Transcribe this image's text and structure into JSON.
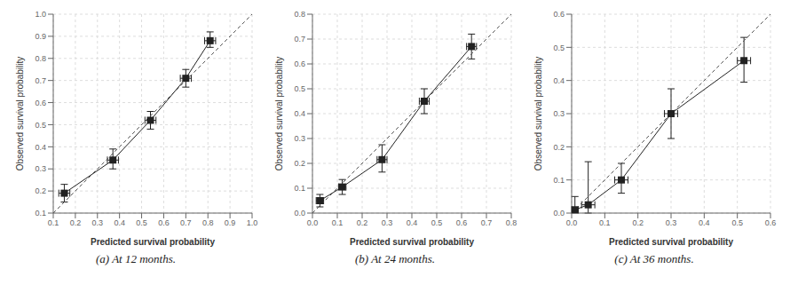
{
  "chart_data": [
    {
      "type": "line",
      "title": "(a) At 12 months.",
      "xlabel": "Predicted survival probability",
      "ylabel": "Observed survival probability",
      "xlim": [
        0.1,
        1.0
      ],
      "ylim": [
        0.1,
        1.0
      ],
      "xticks": [
        0.1,
        0.2,
        0.3,
        0.4,
        0.5,
        0.6,
        0.7,
        0.8,
        0.9,
        {
          "value": 1.0,
          "label": "1.0"
        }
      ],
      "yticks": [
        0.1,
        0.2,
        0.3,
        0.4,
        0.5,
        0.6,
        0.7,
        0.8,
        0.9,
        {
          "value": 1.0,
          "label": "1.0"
        }
      ],
      "grid": true,
      "series": [
        {
          "type": "line",
          "line_style": "dashed",
          "color": "#555555",
          "x": [
            0.1,
            1.0
          ],
          "values": [
            0.1,
            1.0
          ]
        },
        {
          "type": "line",
          "line_style": "solid",
          "marker": "square",
          "color": "#222222",
          "x": [
            0.15,
            0.37,
            0.54,
            0.7,
            0.81
          ],
          "values": [
            0.19,
            0.34,
            0.52,
            0.71,
            0.88
          ],
          "yerr_low": [
            0.04,
            0.04,
            0.04,
            0.04,
            0.03
          ],
          "yerr_high": [
            0.04,
            0.05,
            0.04,
            0.04,
            0.04
          ],
          "xerr_low": [
            0.025,
            0.025,
            0.025,
            0.025,
            0.025
          ],
          "xerr_high": [
            0.025,
            0.025,
            0.025,
            0.025,
            0.025
          ]
        }
      ]
    },
    {
      "type": "line",
      "title": "(b) At 24 months.",
      "xlabel": "Predicted survival probability",
      "ylabel": "Observed survival probability",
      "xlim": [
        0.0,
        0.8
      ],
      "ylim": [
        0.0,
        0.8
      ],
      "xticks": [
        {
          "value": 0.0,
          "label": "0.0"
        },
        0.1,
        0.2,
        0.3,
        0.4,
        0.5,
        0.6,
        0.7,
        0.8
      ],
      "yticks": [
        {
          "value": 0.0,
          "label": "0.0"
        },
        0.1,
        0.2,
        0.3,
        0.4,
        0.5,
        0.6,
        0.7,
        0.8
      ],
      "grid": true,
      "series": [
        {
          "type": "line",
          "line_style": "dashed",
          "color": "#555555",
          "x": [
            0.0,
            0.8
          ],
          "values": [
            0.0,
            0.8
          ]
        },
        {
          "type": "line",
          "line_style": "solid",
          "marker": "square",
          "color": "#222222",
          "x": [
            0.03,
            0.12,
            0.28,
            0.45,
            0.64
          ],
          "values": [
            0.05,
            0.105,
            0.215,
            0.45,
            0.67
          ],
          "yerr_low": [
            0.025,
            0.03,
            0.05,
            0.05,
            0.05
          ],
          "yerr_high": [
            0.025,
            0.03,
            0.06,
            0.05,
            0.05
          ],
          "xerr_low": [
            0.015,
            0.015,
            0.02,
            0.02,
            0.02
          ],
          "xerr_high": [
            0.015,
            0.015,
            0.02,
            0.02,
            0.02
          ]
        }
      ]
    },
    {
      "type": "line",
      "title": "(c) At 36 months.",
      "xlabel": "Predicted survival probability",
      "ylabel": "Observed survival probability",
      "xlim": [
        0.0,
        0.6
      ],
      "ylim": [
        0.0,
        0.6
      ],
      "xticks": [
        {
          "value": 0.0,
          "label": "0.0"
        },
        0.1,
        0.2,
        0.3,
        0.4,
        0.5,
        0.6
      ],
      "yticks": [
        {
          "value": 0.0,
          "label": "0.0"
        },
        0.1,
        0.2,
        0.3,
        0.4,
        0.5,
        0.6
      ],
      "grid": true,
      "series": [
        {
          "type": "line",
          "line_style": "dashed",
          "color": "#555555",
          "x": [
            0.0,
            0.6
          ],
          "values": [
            0.0,
            0.6
          ]
        },
        {
          "type": "line",
          "line_style": "solid",
          "marker": "square",
          "color": "#222222",
          "x": [
            0.01,
            0.05,
            0.15,
            0.3,
            0.52
          ],
          "values": [
            0.01,
            0.025,
            0.1,
            0.3,
            0.46
          ],
          "yerr_low": [
            0.01,
            0.025,
            0.04,
            0.075,
            0.065
          ],
          "yerr_high": [
            0.04,
            0.13,
            0.05,
            0.075,
            0.07
          ],
          "xerr_low": [
            0.01,
            0.02,
            0.02,
            0.02,
            0.02
          ],
          "xerr_high": [
            0.01,
            0.02,
            0.02,
            0.02,
            0.02
          ]
        }
      ]
    }
  ]
}
